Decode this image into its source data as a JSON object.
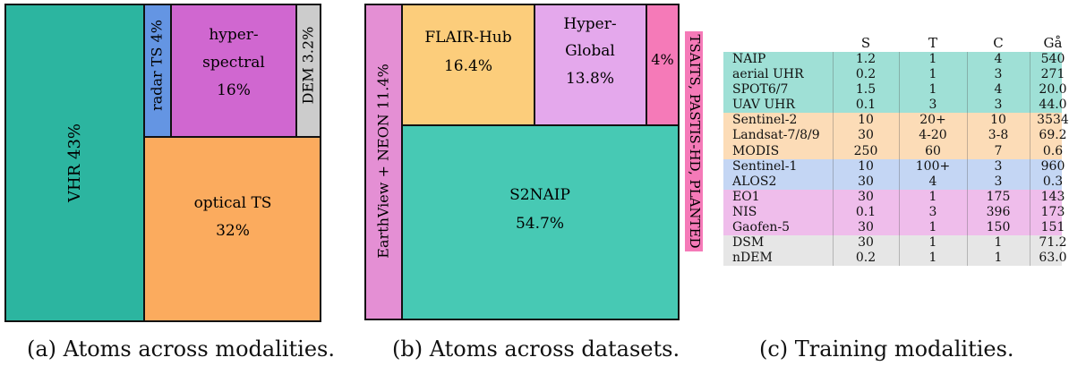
{
  "chart_data": [
    {
      "type": "treemap",
      "caption": "(a) Atoms across modalities.",
      "tiles": [
        {
          "label": "VHR 43%",
          "name": "VHR",
          "percent": 43,
          "color": "#2cb5a0",
          "orientation": "vertical"
        },
        {
          "label": "radar TS 4%",
          "name": "radar TS",
          "percent": 4,
          "color": "#6495e3",
          "orientation": "vertical"
        },
        {
          "label": "hyper-",
          "label2": "spectral",
          "value_label": "16%",
          "name": "hyper-spectral",
          "percent": 16,
          "color": "#d067d0"
        },
        {
          "label": "DEM 3.2%",
          "name": "DEM",
          "percent": 3.2,
          "color": "#cccccc",
          "orientation": "vertical"
        },
        {
          "label": "optical TS",
          "value_label": "32%",
          "name": "optical TS",
          "percent": 32,
          "color": "#fbab5e"
        }
      ]
    },
    {
      "type": "treemap",
      "caption": "(b) Atoms across datasets.",
      "tiles": [
        {
          "label": "EarthView + NEON 11.4%",
          "name": "EarthView + NEON",
          "percent": 11.4,
          "color": "#e48fd4",
          "orientation": "vertical"
        },
        {
          "label": "FLAIR-Hub",
          "value_label": "16.4%",
          "name": "FLAIR-Hub",
          "percent": 16.4,
          "color": "#fccd7b"
        },
        {
          "label": "Hyper-",
          "label2": "Global",
          "value_label": "13.8%",
          "name": "Hyper-Global",
          "percent": 13.8,
          "color": "#e4a8ec"
        },
        {
          "label": "4%",
          "name": "other",
          "percent": 4,
          "color": "#f57ab8"
        },
        {
          "label": "S2NAIP",
          "value_label": "54.7%",
          "name": "S2NAIP",
          "percent": 54.7,
          "color": "#47c9b4"
        }
      ],
      "side_label": "TSAITS, PASTIS-HD, PLANTED",
      "side_label_color": "#f57ab8"
    },
    {
      "type": "table",
      "caption": "(c) Training modalities.",
      "columns": [
        "",
        "S",
        "T",
        "C",
        "Gå"
      ],
      "groups": [
        {
          "color": "#9fe0d6",
          "rows": [
            {
              "name": "NAIP",
              "S": "1.2",
              "T": "1",
              "C": "4",
              "G": "540"
            },
            {
              "name": "aerial UHR",
              "S": "0.2",
              "T": "1",
              "C": "3",
              "G": "271"
            },
            {
              "name": "SPOT6/7",
              "S": "1.5",
              "T": "1",
              "C": "4",
              "G": "20.0"
            },
            {
              "name": "UAV UHR",
              "S": "0.1",
              "T": "3",
              "C": "3",
              "G": "44.0"
            }
          ]
        },
        {
          "color": "#fcdcb7",
          "rows": [
            {
              "name": "Sentinel-2",
              "S": "10",
              "T": "20+",
              "C": "10",
              "G": "3534"
            },
            {
              "name": "Landsat-7/8/9",
              "S": "30",
              "T": "4-20",
              "C": "3-8",
              "G": "69.2"
            },
            {
              "name": "MODIS",
              "S": "250",
              "T": "60",
              "C": "7",
              "G": "0.6"
            }
          ]
        },
        {
          "color": "#c4d6f4",
          "rows": [
            {
              "name": "Sentinel-1",
              "S": "10",
              "T": "100+",
              "C": "3",
              "G": "960"
            },
            {
              "name": "ALOS2",
              "S": "30",
              "T": "4",
              "C": "3",
              "G": "0.3"
            }
          ]
        },
        {
          "color": "#efbdeb",
          "rows": [
            {
              "name": "EO1",
              "S": "30",
              "T": "1",
              "C": "175",
              "G": "143"
            },
            {
              "name": "NIS",
              "S": "0.1",
              "T": "3",
              "C": "396",
              "G": "173"
            },
            {
              "name": "Gaofen-5",
              "S": "30",
              "T": "1",
              "C": "150",
              "G": "151"
            }
          ]
        },
        {
          "color": "#e6e6e6",
          "rows": [
            {
              "name": "DSM",
              "S": "30",
              "T": "1",
              "C": "1",
              "G": "71.2"
            },
            {
              "name": "nDEM",
              "S": "0.2",
              "T": "1",
              "C": "1",
              "G": "63.0"
            }
          ]
        }
      ]
    }
  ]
}
